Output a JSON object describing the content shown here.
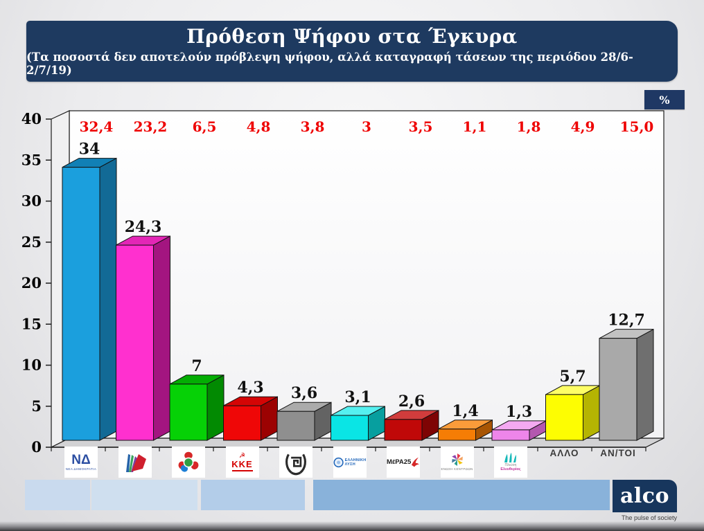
{
  "header": {
    "title": "Πρόθεση Ψήφου στα Έγκυρα",
    "subtitle": "(Τα ποσοστά δεν αποτελούν πρόβλεψη ψήφου, αλλά καταγραφή τάσεων της περιόδου 28/6-2/7/19)",
    "bg_color": "#1e3a60"
  },
  "percent_badge": {
    "label": "%",
    "bg_color": "#1f3864"
  },
  "chart_data": {
    "type": "bar",
    "style": "3d-column",
    "title": "Πρόθεση Ψήφου στα Έγκυρα",
    "unit": "%",
    "xlabel": "",
    "ylabel": "",
    "ylim": [
      0,
      40
    ],
    "yticks": [
      0,
      5,
      10,
      15,
      20,
      25,
      30,
      35,
      40
    ],
    "grid": false,
    "legend": "none",
    "categories": [
      "ΝΕΑ ΔΗΜΟΚΡΑΤΙΑ",
      "ΣΥΡΙΖΑ",
      "ΚΙΝΗΜΑ ΑΛΛΑΓΗΣ",
      "ΚΚΕ",
      "ΧΡΥΣΗ ΑΥΓΗ",
      "ΕΛΛΗΝΙΚΗ ΛΥΣΗ",
      "ΜέΡΑ25",
      "ΕΝΩΣΗ ΚΕΝΤΡΩΩΝ",
      "ΠΛΕΥΣΗ ΕΛΕΥΘΕΡΙΑΣ",
      "ΑΛΛΟ",
      "ΑΝ/ΤΟΙ"
    ],
    "values": [
      34,
      24.3,
      7,
      4.3,
      3.6,
      3.1,
      2.6,
      1.4,
      1.3,
      5.7,
      12.7
    ],
    "value_labels": [
      "34",
      "24,3",
      "7",
      "4,3",
      "3,6",
      "3,1",
      "2,6",
      "1,4",
      "1,3",
      "5,7",
      "12,7"
    ],
    "value_label_color": "#111111",
    "upper_row": {
      "values": [
        32.4,
        23.2,
        6.5,
        4.8,
        3.8,
        3,
        3.5,
        1.1,
        1.8,
        4.9,
        15
      ],
      "labels": [
        "32,4",
        "23,2",
        "6,5",
        "4,8",
        "3,8",
        "3",
        "3,5",
        "1,1",
        "1,8",
        "4,9",
        "15,0"
      ],
      "color": "#ee0000"
    },
    "bar_colors": [
      {
        "front": "#1b9fdd",
        "top": "#1180b5",
        "side": "#126a96"
      },
      {
        "front": "#ff30cf",
        "top": "#e326b6",
        "side": "#a31580"
      },
      {
        "front": "#06d106",
        "top": "#04ad04",
        "side": "#028a02"
      },
      {
        "front": "#ef0707",
        "top": "#d40505",
        "side": "#9c0202"
      },
      {
        "front": "#8f8f8f",
        "top": "#ababab",
        "side": "#636363"
      },
      {
        "front": "#0ae5e5",
        "top": "#55f0f0",
        "side": "#079f9f"
      },
      {
        "front": "#c00808",
        "top": "#d13c3c",
        "side": "#7e0404"
      },
      {
        "front": "#f57d05",
        "top": "#fa9c3a",
        "side": "#a85503"
      },
      {
        "front": "#ee85ea",
        "top": "#f4a9f1",
        "side": "#b358af"
      },
      {
        "front": "#fdfd02",
        "top": "#fefe66",
        "side": "#b5b402"
      },
      {
        "front": "#a9a9a9",
        "top": "#c2c2c2",
        "side": "#6f6f6f"
      }
    ]
  },
  "logos": [
    {
      "id": "nea-dimokratia",
      "type": "logo",
      "monogram": "ΝΔ",
      "caption": "ΝΕΑ ΔΗΜΟΚΡΑΤΙΑ",
      "color": "#2b4ea2"
    },
    {
      "id": "syriza",
      "type": "logo",
      "caption": "",
      "color": "#cf1f2e"
    },
    {
      "id": "kinal",
      "type": "logo",
      "caption": "",
      "color": "#2f9e44"
    },
    {
      "id": "kke",
      "type": "logo",
      "monogram": "ΚΚΕ",
      "symbol": "☭",
      "caption": "",
      "color": "#d40000"
    },
    {
      "id": "xrysi-avgi",
      "type": "logo",
      "caption": "",
      "color": "#2b2b2b"
    },
    {
      "id": "elliniki-lysi",
      "type": "logo",
      "lines": [
        "ΕΛΛΗΝΙΚΗ",
        "ΛΥΣΗ"
      ],
      "color": "#1c63b8"
    },
    {
      "id": "mera25",
      "type": "logo",
      "monogram": "ΜέΡΑ25",
      "color": "#1a1a1a"
    },
    {
      "id": "enosi-kentroon",
      "type": "logo",
      "caption": "ΕΝΩΣΗ ΚΕΝΤΡΩΩΝ",
      "color": "#8a8a8a"
    },
    {
      "id": "plefsi-eleftherias",
      "type": "logo",
      "lines": [
        "Πλεύση",
        "Ελευθερίας"
      ],
      "color": "#14b8b8",
      "accent": "#c2329b"
    },
    {
      "id": "allo",
      "type": "text",
      "caption": "ΑΛΛΟ"
    },
    {
      "id": "antoi",
      "type": "text",
      "caption": "ΑΝ/ΤΟΙ"
    }
  ],
  "footer": {
    "strip_colors": [
      "#c9daee",
      "#cfdfef",
      "#b3cde9",
      "#89b2da"
    ],
    "logo_text": "alco",
    "tagline": "The pulse of society",
    "logo_bg": "#17365d"
  }
}
